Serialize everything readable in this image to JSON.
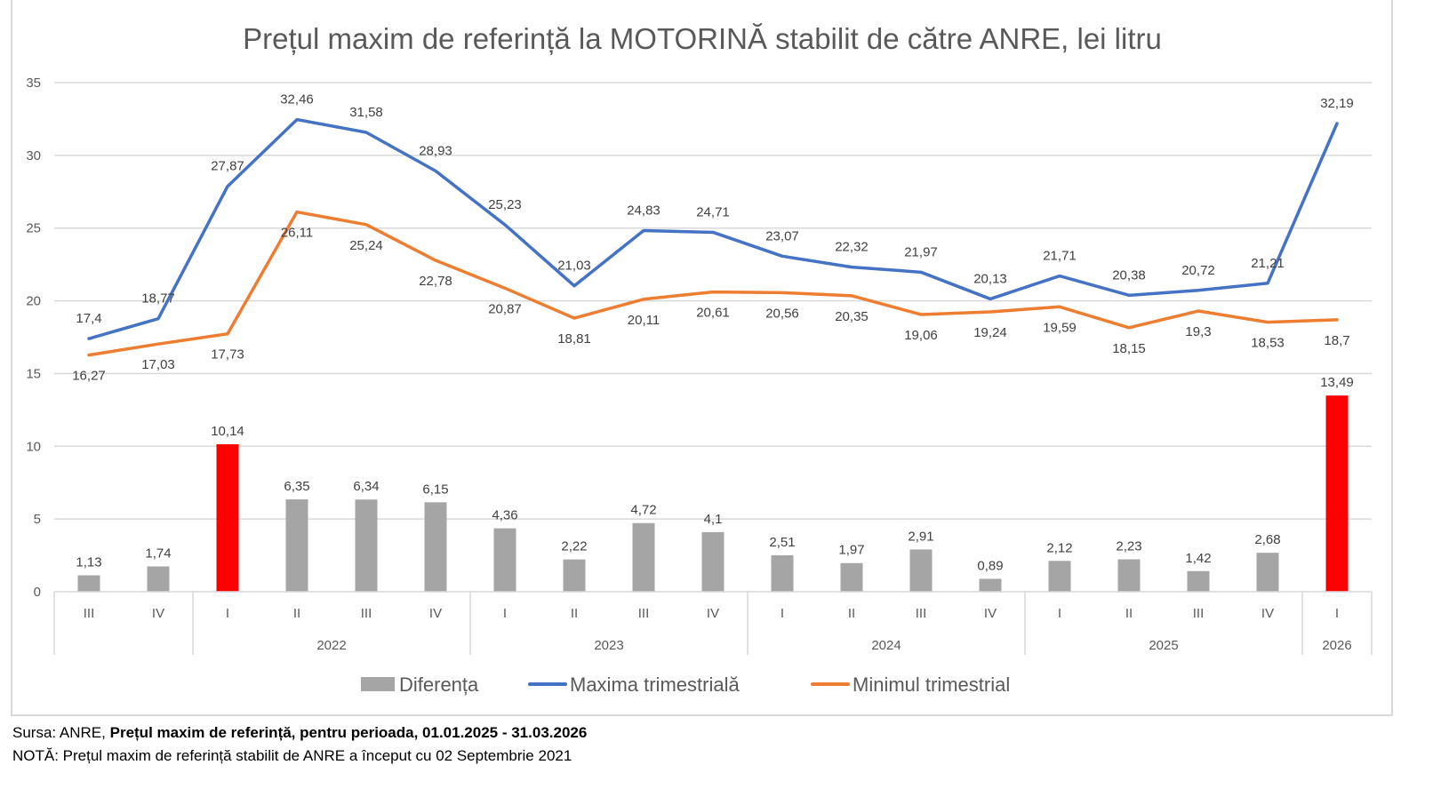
{
  "chart_data": {
    "type": "bar+line",
    "title": "Prețul maxim de referință la MOTORINĂ stabilit de către ANRE, lei litru",
    "ylim": [
      0,
      35
    ],
    "yticks": [
      "0",
      "5",
      "10",
      "15",
      "20",
      "25",
      "30",
      "35"
    ],
    "ytick_values": [
      0,
      5,
      10,
      15,
      20,
      25,
      30,
      35
    ],
    "grid": true,
    "legend_position": "bottom",
    "categories": [
      "III",
      "IV",
      "I",
      "II",
      "III",
      "IV",
      "I",
      "II",
      "III",
      "IV",
      "I",
      "II",
      "III",
      "IV",
      "I",
      "II",
      "III",
      "IV",
      "I"
    ],
    "year_groups": [
      {
        "label": "",
        "count": 2
      },
      {
        "label": "2022",
        "count": 4
      },
      {
        "label": "2023",
        "count": 4
      },
      {
        "label": "2024",
        "count": 4
      },
      {
        "label": "2025",
        "count": 4
      },
      {
        "label": "2026",
        "count": 1
      }
    ],
    "series": [
      {
        "name": "Diferența",
        "type": "bar",
        "color": "#a5a5a5",
        "highlight_color": "#ff0000",
        "highlight_indices": [
          2,
          18
        ],
        "values": [
          1.13,
          1.74,
          10.14,
          6.35,
          6.34,
          6.15,
          4.36,
          2.22,
          4.72,
          4.1,
          2.51,
          1.97,
          2.91,
          0.89,
          2.12,
          2.23,
          1.42,
          2.68,
          13.49
        ],
        "labels": [
          "1,13",
          "1,74",
          "10,14",
          "6,35",
          "6,34",
          "6,15",
          "4,36",
          "2,22",
          "4,72",
          "4,1",
          "2,51",
          "1,97",
          "2,91",
          "0,89",
          "2,12",
          "2,23",
          "1,42",
          "2,68",
          "13,49"
        ]
      },
      {
        "name": "Maxima trimestrială",
        "type": "line",
        "color": "#4472c4",
        "values": [
          17.4,
          18.77,
          27.87,
          32.46,
          31.58,
          28.93,
          25.23,
          21.03,
          24.83,
          24.71,
          23.07,
          22.32,
          21.97,
          20.13,
          21.71,
          20.38,
          20.72,
          21.21,
          32.19
        ],
        "labels": [
          "17,4",
          "18,77",
          "27,87",
          "32,46",
          "31,58",
          "28,93",
          "25,23",
          "21,03",
          "24,83",
          "24,71",
          "23,07",
          "22,32",
          "21,97",
          "20,13",
          "21,71",
          "20,38",
          "20,72",
          "21,21",
          "32,19"
        ]
      },
      {
        "name": "Minimul trimestrial",
        "type": "line",
        "color": "#ed7d31",
        "values": [
          16.27,
          17.03,
          17.73,
          26.11,
          25.24,
          22.78,
          20.87,
          18.81,
          20.11,
          20.61,
          20.56,
          20.35,
          19.06,
          19.24,
          19.59,
          18.15,
          19.3,
          18.53,
          18.7
        ],
        "labels": [
          "16,27",
          "17,03",
          "17,73",
          "26,11",
          "25,24",
          "22,78",
          "20,87",
          "18,81",
          "20,11",
          "20,61",
          "20,56",
          "20,35",
          "19,06",
          "19,24",
          "19,59",
          "18,15",
          "19,3",
          "18,53",
          "18,7"
        ]
      }
    ]
  },
  "footer": {
    "source_prefix": "Sursa: ANRE, ",
    "source_bold": "Prețul maxim de referință, pentru perioada, 01.01.2025 - 31.03.2026",
    "note": "NOTĂ:  Prețul maxim de referință stabilit de ANRE a început cu 02 Septembrie 2021"
  }
}
